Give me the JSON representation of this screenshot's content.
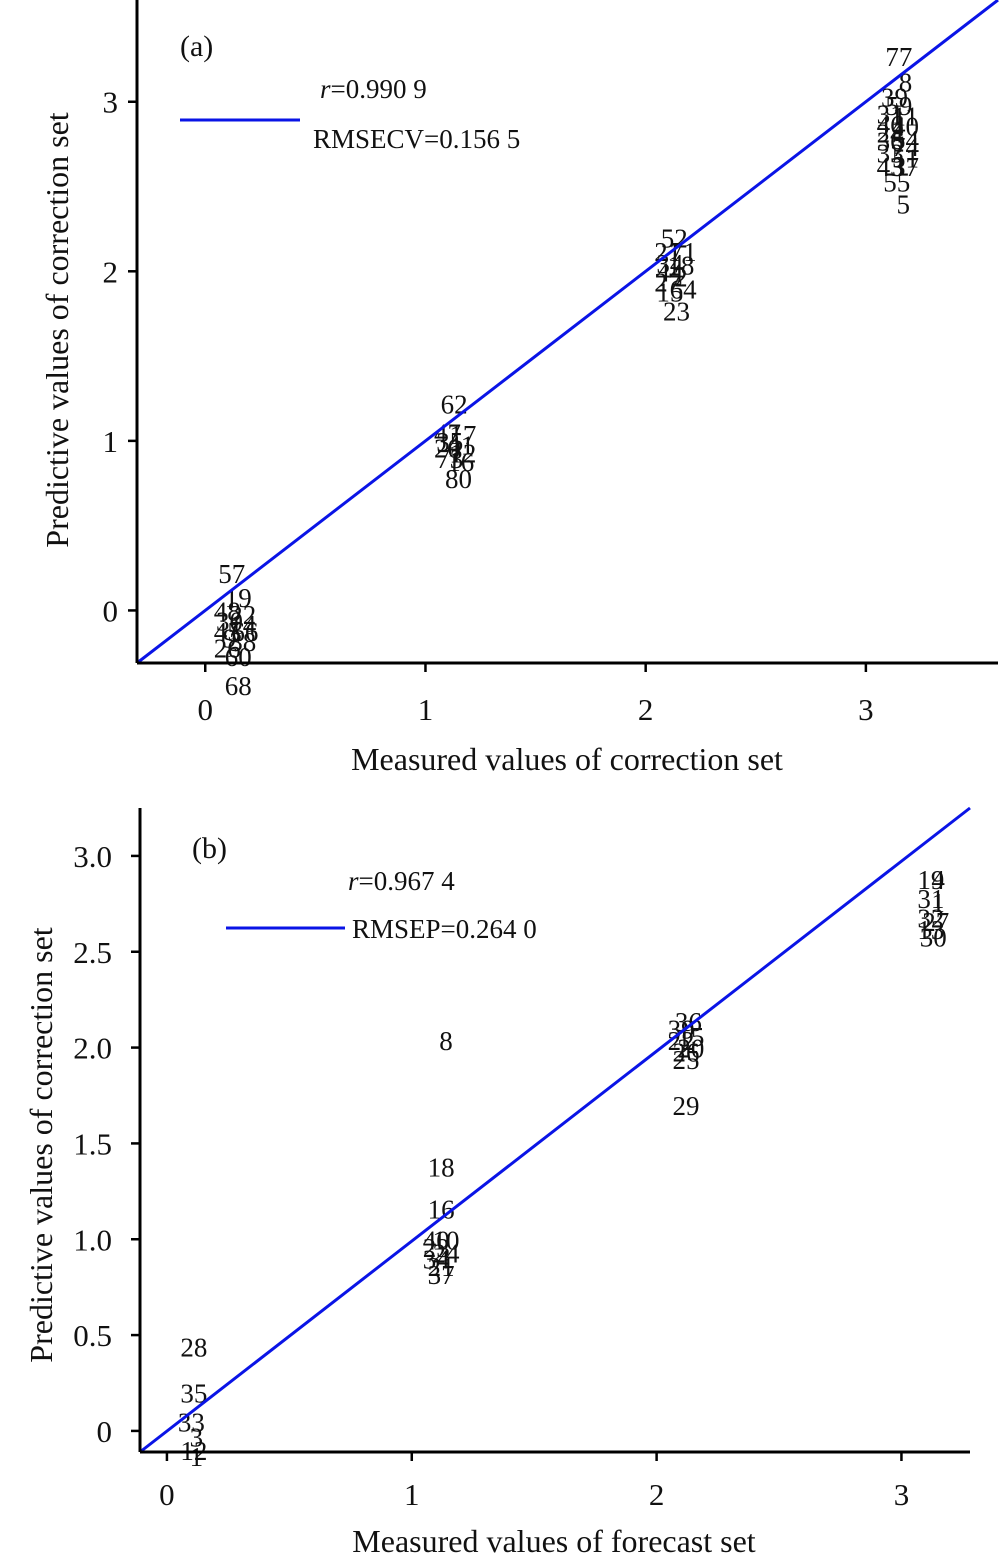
{
  "chart_data": [
    {
      "type": "scatter",
      "panel": "(a)",
      "xlabel": "Measured values of correction set",
      "ylabel": "Predictive values of correction set",
      "xlim": [
        -0.31,
        3.6
      ],
      "ylim": [
        -0.31,
        3.6
      ],
      "xticks": [
        "0",
        "1",
        "2",
        "3"
      ],
      "xtick_values": [
        0,
        1,
        2,
        3
      ],
      "yticks": [
        "0",
        "1",
        "2",
        "3"
      ],
      "ytick_values": [
        0,
        1,
        2,
        3
      ],
      "legend": {
        "line_label": "",
        "stats": [
          "r=0.990 9",
          "RMSECV=0.156 5"
        ],
        "position": "top-left"
      },
      "stats": {
        "r_prefix": "r",
        "r_value": "=0.990 9",
        "rmse": "RMSECV=0.156 5"
      },
      "fit_line": {
        "x": [
          -0.31,
          3.6
        ],
        "y": [
          -0.31,
          3.6
        ]
      },
      "points": [
        {
          "label": "57",
          "x": 0.12,
          "y": 0.22
        },
        {
          "label": "19",
          "x": 0.15,
          "y": 0.08
        },
        {
          "label": "48",
          "x": 0.1,
          "y": 0.0
        },
        {
          "label": "22",
          "x": 0.17,
          "y": -0.02
        },
        {
          "label": "30",
          "x": 0.11,
          "y": -0.06
        },
        {
          "label": "14",
          "x": 0.17,
          "y": -0.08
        },
        {
          "label": "45",
          "x": 0.1,
          "y": -0.12
        },
        {
          "label": "66",
          "x": 0.18,
          "y": -0.12
        },
        {
          "label": "9",
          "x": 0.11,
          "y": -0.16
        },
        {
          "label": "38",
          "x": 0.17,
          "y": -0.18
        },
        {
          "label": "26",
          "x": 0.1,
          "y": -0.22
        },
        {
          "label": "60",
          "x": 0.15,
          "y": -0.27
        },
        {
          "label": "68",
          "x": 0.15,
          "y": -0.44
        },
        {
          "label": "62",
          "x": 1.13,
          "y": 1.22
        },
        {
          "label": "47",
          "x": 1.1,
          "y": 1.05
        },
        {
          "label": "17",
          "x": 1.17,
          "y": 1.04
        },
        {
          "label": "35",
          "x": 1.11,
          "y": 1.0
        },
        {
          "label": "41",
          "x": 1.16,
          "y": 0.98
        },
        {
          "label": "20",
          "x": 1.1,
          "y": 0.96
        },
        {
          "label": "12",
          "x": 1.17,
          "y": 0.93
        },
        {
          "label": "73",
          "x": 1.11,
          "y": 0.9
        },
        {
          "label": "16",
          "x": 1.16,
          "y": 0.88
        },
        {
          "label": "80",
          "x": 1.15,
          "y": 0.78
        },
        {
          "label": "52",
          "x": 2.13,
          "y": 2.2
        },
        {
          "label": "21",
          "x": 2.1,
          "y": 2.12
        },
        {
          "label": "71",
          "x": 2.17,
          "y": 2.12
        },
        {
          "label": "34",
          "x": 2.11,
          "y": 2.05
        },
        {
          "label": "18",
          "x": 2.16,
          "y": 2.04
        },
        {
          "label": "44",
          "x": 2.11,
          "y": 2.0
        },
        {
          "label": "2",
          "x": 2.16,
          "y": 1.97
        },
        {
          "label": "27",
          "x": 2.1,
          "y": 1.94
        },
        {
          "label": "64",
          "x": 2.17,
          "y": 1.9
        },
        {
          "label": "15",
          "x": 2.11,
          "y": 1.88
        },
        {
          "label": "23",
          "x": 2.14,
          "y": 1.77
        },
        {
          "label": "77",
          "x": 3.15,
          "y": 3.27
        },
        {
          "label": "8",
          "x": 3.18,
          "y": 3.12
        },
        {
          "label": "39",
          "x": 3.13,
          "y": 3.03
        },
        {
          "label": "59",
          "x": 3.15,
          "y": 2.98
        },
        {
          "label": "31",
          "x": 3.11,
          "y": 2.93
        },
        {
          "label": "11",
          "x": 3.18,
          "y": 2.92
        },
        {
          "label": "46",
          "x": 3.11,
          "y": 2.87
        },
        {
          "label": "40",
          "x": 3.18,
          "y": 2.86
        },
        {
          "label": "24",
          "x": 3.11,
          "y": 2.82
        },
        {
          "label": "54",
          "x": 3.18,
          "y": 2.78
        },
        {
          "label": "36",
          "x": 3.11,
          "y": 2.77
        },
        {
          "label": "74",
          "x": 3.18,
          "y": 2.74
        },
        {
          "label": "33",
          "x": 3.11,
          "y": 2.7
        },
        {
          "label": "51",
          "x": 3.18,
          "y": 2.67
        },
        {
          "label": "43",
          "x": 3.11,
          "y": 2.62
        },
        {
          "label": "37",
          "x": 3.18,
          "y": 2.62
        },
        {
          "label": "55",
          "x": 3.14,
          "y": 2.53
        },
        {
          "label": "5",
          "x": 3.17,
          "y": 2.4
        }
      ]
    },
    {
      "type": "scatter",
      "panel": "(b)",
      "xlabel": "Measured values of forecast set",
      "ylabel": "Predictive values of correction set",
      "xlim": [
        -0.11,
        3.28
      ],
      "ylim": [
        -0.11,
        3.25
      ],
      "xticks": [
        "0",
        "1",
        "2",
        "3"
      ],
      "xtick_values": [
        0,
        1,
        2,
        3
      ],
      "yticks": [
        "0",
        "0.5",
        "1.0",
        "1.5",
        "2.0",
        "2.5",
        "3.0"
      ],
      "ytick_values": [
        0,
        0.5,
        1.0,
        1.5,
        2.0,
        2.5,
        3.0
      ],
      "legend": {
        "line_label": "",
        "stats": [
          "r=0.967 4",
          "RMSEP=0.264 0"
        ],
        "position": "top-left"
      },
      "stats": {
        "r_prefix": "r",
        "r_value": "=0.967 4",
        "rmse": "RMSEP=0.264 0"
      },
      "fit_line": {
        "x": [
          -0.11,
          3.28
        ],
        "y": [
          -0.11,
          3.25
        ]
      },
      "points": [
        {
          "label": "19",
          "x": 3.12,
          "y": 2.88
        },
        {
          "label": "4",
          "x": 3.15,
          "y": 2.88
        },
        {
          "label": "31",
          "x": 3.12,
          "y": 2.78
        },
        {
          "label": "1",
          "x": 3.15,
          "y": 2.76
        },
        {
          "label": "32",
          "x": 3.12,
          "y": 2.68
        },
        {
          "label": "27",
          "x": 3.14,
          "y": 2.66
        },
        {
          "label": "13",
          "x": 3.12,
          "y": 2.62
        },
        {
          "label": "30",
          "x": 3.13,
          "y": 2.58
        },
        {
          "label": "36",
          "x": 2.13,
          "y": 2.14
        },
        {
          "label": "39",
          "x": 2.1,
          "y": 2.1
        },
        {
          "label": "15",
          "x": 2.14,
          "y": 2.06
        },
        {
          "label": "22",
          "x": 2.1,
          "y": 2.04
        },
        {
          "label": "20",
          "x": 2.14,
          "y": 2.0
        },
        {
          "label": "26",
          "x": 2.12,
          "y": 1.98
        },
        {
          "label": "25",
          "x": 2.12,
          "y": 1.94
        },
        {
          "label": "29",
          "x": 2.12,
          "y": 1.7
        },
        {
          "label": "8",
          "x": 1.14,
          "y": 2.04
        },
        {
          "label": "18",
          "x": 1.12,
          "y": 1.38
        },
        {
          "label": "16",
          "x": 1.12,
          "y": 1.16
        },
        {
          "label": "40",
          "x": 1.1,
          "y": 1.0
        },
        {
          "label": "10",
          "x": 1.14,
          "y": 1.0
        },
        {
          "label": "23",
          "x": 1.1,
          "y": 0.96
        },
        {
          "label": "24",
          "x": 1.14,
          "y": 0.93
        },
        {
          "label": "34",
          "x": 1.1,
          "y": 0.9
        },
        {
          "label": "21",
          "x": 1.12,
          "y": 0.86
        },
        {
          "label": "37",
          "x": 1.12,
          "y": 0.82
        },
        {
          "label": "28",
          "x": 0.11,
          "y": 0.44
        },
        {
          "label": "35",
          "x": 0.11,
          "y": 0.2
        },
        {
          "label": "33",
          "x": 0.1,
          "y": 0.05
        },
        {
          "label": "3",
          "x": 0.12,
          "y": -0.03
        },
        {
          "label": "12",
          "x": 0.11,
          "y": -0.1
        },
        {
          "label": "1",
          "x": 0.12,
          "y": -0.13
        }
      ]
    }
  ],
  "colors": {
    "fit_line": "#0a14e6",
    "axis": "#000000",
    "text": "#111111"
  }
}
